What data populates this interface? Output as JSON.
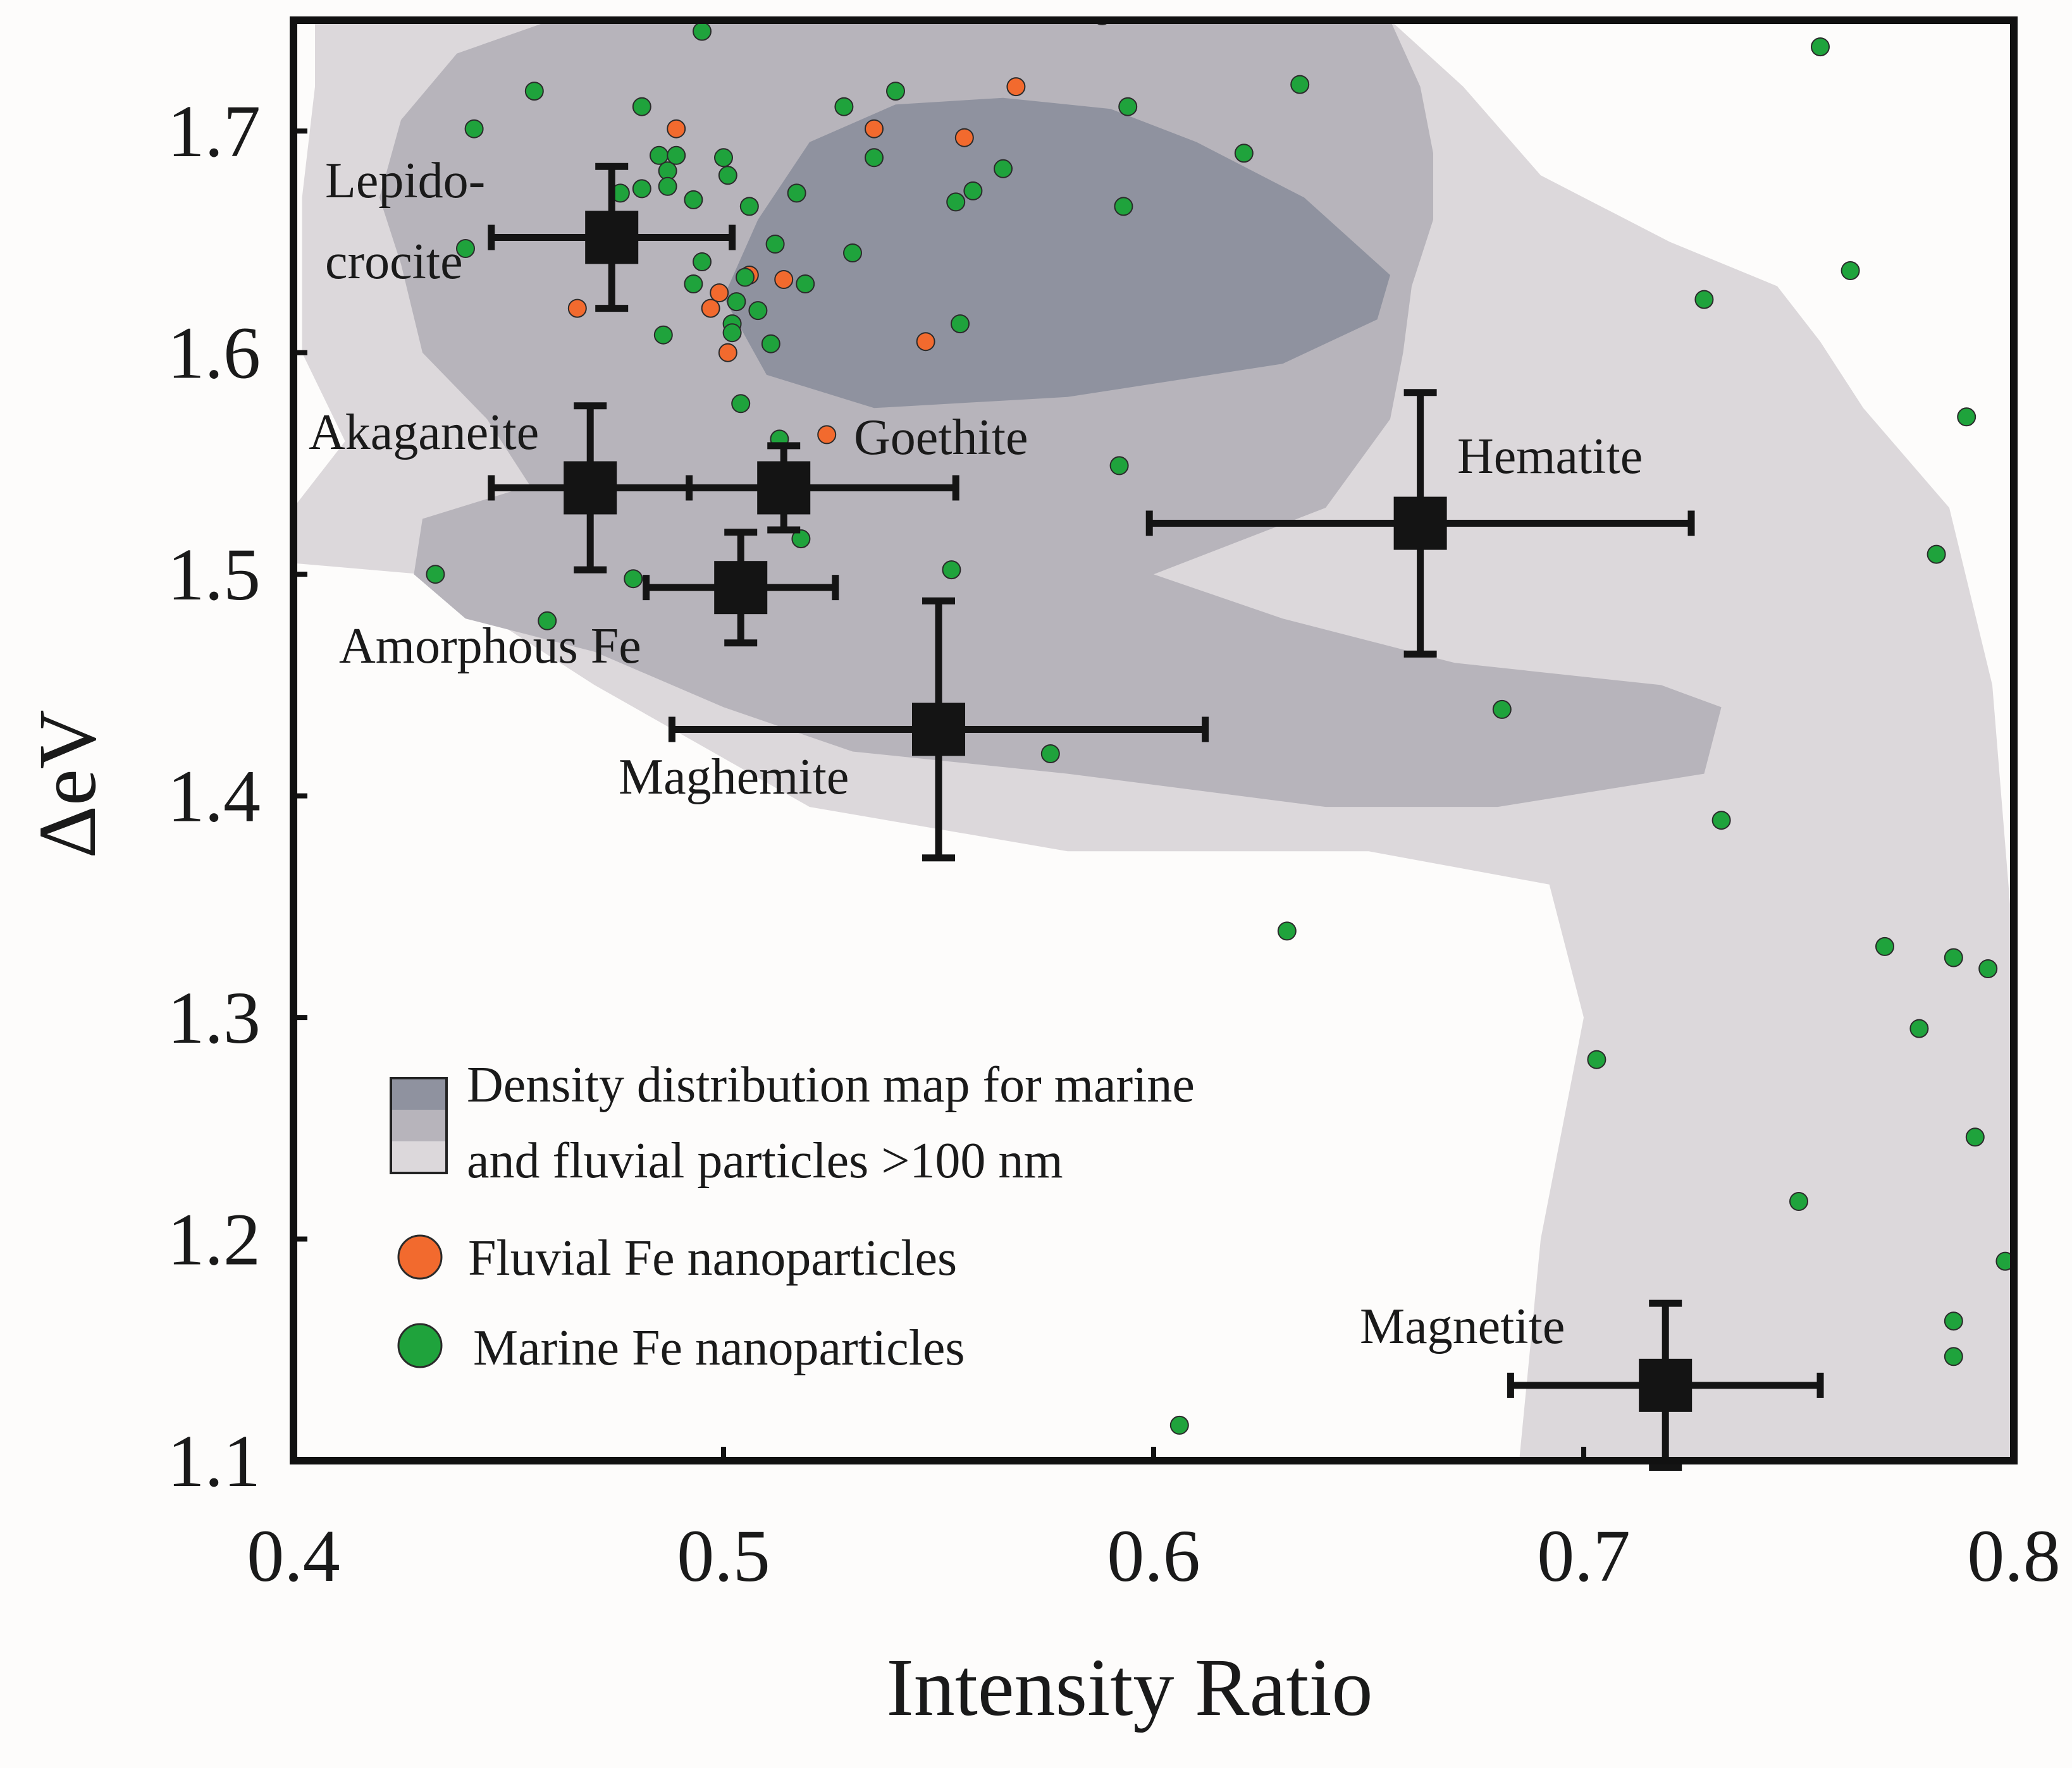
{
  "chart_data": {
    "type": "scatter",
    "xlabel": "Intensity Ratio",
    "ylabel": "ΔeV",
    "xlim": [
      0.4,
      0.8
    ],
    "ylim": [
      1.1,
      1.75
    ],
    "x_ticks": [
      "0.4",
      "0.5",
      "0.6",
      "0.7",
      "0.8"
    ],
    "y_ticks": [
      "1.1",
      "1.2",
      "1.3",
      "1.4",
      "1.5",
      "1.6",
      "1.7"
    ],
    "x_tick_values": [
      0.4,
      0.5,
      0.6,
      0.7,
      0.8
    ],
    "y_tick_values": [
      1.1,
      1.2,
      1.3,
      1.4,
      1.5,
      1.6,
      1.7
    ],
    "colors": {
      "fluvial": "#f26a2e",
      "marine": "#1fa33c",
      "density_low": "#dcd8db",
      "density_mid": "#b7b4bb",
      "density_high": "#8f929f",
      "reference": "#141414"
    },
    "density_regions": [
      {
        "level": "low",
        "polygon": [
          [
            0.405,
            1.75
          ],
          [
            0.655,
            1.75
          ],
          [
            0.672,
            1.72
          ],
          [
            0.69,
            1.68
          ],
          [
            0.72,
            1.65
          ],
          [
            0.745,
            1.63
          ],
          [
            0.755,
            1.605
          ],
          [
            0.765,
            1.575
          ],
          [
            0.785,
            1.53
          ],
          [
            0.795,
            1.45
          ],
          [
            0.8,
            1.33
          ],
          [
            0.8,
            1.1
          ],
          [
            0.685,
            1.1
          ],
          [
            0.69,
            1.2
          ],
          [
            0.7,
            1.3
          ],
          [
            0.692,
            1.36
          ],
          [
            0.65,
            1.375
          ],
          [
            0.58,
            1.375
          ],
          [
            0.52,
            1.395
          ],
          [
            0.47,
            1.45
          ],
          [
            0.43,
            1.5
          ],
          [
            0.4,
            1.505
          ],
          [
            0.4,
            1.53
          ],
          [
            0.412,
            1.56
          ],
          [
            0.402,
            1.6
          ],
          [
            0.402,
            1.67
          ],
          [
            0.405,
            1.72
          ]
        ]
      },
      {
        "level": "mid",
        "polygon": [
          [
            0.425,
            1.705
          ],
          [
            0.438,
            1.735
          ],
          [
            0.46,
            1.75
          ],
          [
            0.655,
            1.75
          ],
          [
            0.662,
            1.72
          ],
          [
            0.665,
            1.69
          ],
          [
            0.665,
            1.66
          ],
          [
            0.66,
            1.63
          ],
          [
            0.658,
            1.6
          ],
          [
            0.655,
            1.57
          ],
          [
            0.64,
            1.53
          ],
          [
            0.6,
            1.5
          ],
          [
            0.63,
            1.48
          ],
          [
            0.67,
            1.46
          ],
          [
            0.718,
            1.45
          ],
          [
            0.732,
            1.44
          ],
          [
            0.728,
            1.41
          ],
          [
            0.68,
            1.395
          ],
          [
            0.64,
            1.395
          ],
          [
            0.58,
            1.41
          ],
          [
            0.53,
            1.42
          ],
          [
            0.5,
            1.44
          ],
          [
            0.47,
            1.465
          ],
          [
            0.44,
            1.48
          ],
          [
            0.428,
            1.5
          ],
          [
            0.43,
            1.525
          ],
          [
            0.455,
            1.54
          ],
          [
            0.445,
            1.57
          ],
          [
            0.43,
            1.6
          ],
          [
            0.425,
            1.64
          ],
          [
            0.42,
            1.67
          ]
        ]
      },
      {
        "level": "high",
        "polygon": [
          [
            0.5,
            1.625
          ],
          [
            0.51,
            1.59
          ],
          [
            0.535,
            1.575
          ],
          [
            0.58,
            1.58
          ],
          [
            0.63,
            1.595
          ],
          [
            0.652,
            1.615
          ],
          [
            0.655,
            1.635
          ],
          [
            0.635,
            1.67
          ],
          [
            0.61,
            1.695
          ],
          [
            0.59,
            1.71
          ],
          [
            0.565,
            1.715
          ],
          [
            0.54,
            1.712
          ],
          [
            0.52,
            1.695
          ],
          [
            0.508,
            1.66
          ]
        ]
      }
    ],
    "series": [
      {
        "name": "Fluvial Fe nanoparticles",
        "points": [
          [
            0.489,
            1.701
          ],
          [
            0.535,
            1.701
          ],
          [
            0.556,
            1.697
          ],
          [
            0.568,
            1.72
          ],
          [
            0.466,
            1.62
          ],
          [
            0.497,
            1.62
          ],
          [
            0.501,
            1.6
          ],
          [
            0.499,
            1.627
          ],
          [
            0.506,
            1.635
          ],
          [
            0.514,
            1.633
          ],
          [
            0.547,
            1.605
          ],
          [
            0.524,
            1.563
          ]
        ]
      },
      {
        "name": "Marine Fe nanoparticles",
        "points": [
          [
            0.442,
            1.701
          ],
          [
            0.456,
            1.718
          ],
          [
            0.481,
            1.711
          ],
          [
            0.495,
            1.745
          ],
          [
            0.528,
            1.711
          ],
          [
            0.54,
            1.718
          ],
          [
            0.588,
            1.752
          ],
          [
            0.594,
            1.711
          ],
          [
            0.634,
            1.721
          ],
          [
            0.755,
            1.738
          ],
          [
            0.485,
            1.689
          ],
          [
            0.487,
            1.682
          ],
          [
            0.489,
            1.689
          ],
          [
            0.487,
            1.675
          ],
          [
            0.476,
            1.672
          ],
          [
            0.481,
            1.674
          ],
          [
            0.493,
            1.669
          ],
          [
            0.5,
            1.688
          ],
          [
            0.501,
            1.68
          ],
          [
            0.506,
            1.666
          ],
          [
            0.517,
            1.672
          ],
          [
            0.535,
            1.688
          ],
          [
            0.554,
            1.668
          ],
          [
            0.558,
            1.673
          ],
          [
            0.565,
            1.683
          ],
          [
            0.593,
            1.666
          ],
          [
            0.621,
            1.69
          ],
          [
            0.44,
            1.647
          ],
          [
            0.512,
            1.649
          ],
          [
            0.53,
            1.645
          ],
          [
            0.495,
            1.641
          ],
          [
            0.493,
            1.631
          ],
          [
            0.503,
            1.623
          ],
          [
            0.502,
            1.613
          ],
          [
            0.502,
            1.609
          ],
          [
            0.505,
            1.634
          ],
          [
            0.508,
            1.619
          ],
          [
            0.519,
            1.631
          ],
          [
            0.486,
            1.608
          ],
          [
            0.511,
            1.604
          ],
          [
            0.555,
            1.613
          ],
          [
            0.728,
            1.624
          ],
          [
            0.762,
            1.637
          ],
          [
            0.504,
            1.577
          ],
          [
            0.513,
            1.561
          ],
          [
            0.592,
            1.549
          ],
          [
            0.789,
            1.571
          ],
          [
            0.518,
            1.516
          ],
          [
            0.433,
            1.5
          ],
          [
            0.479,
            1.498
          ],
          [
            0.553,
            1.502
          ],
          [
            0.459,
            1.479
          ],
          [
            0.782,
            1.509
          ],
          [
            0.576,
            1.419
          ],
          [
            0.681,
            1.439
          ],
          [
            0.732,
            1.389
          ],
          [
            0.631,
            1.339
          ],
          [
            0.77,
            1.332
          ],
          [
            0.786,
            1.327
          ],
          [
            0.794,
            1.322
          ],
          [
            0.778,
            1.295
          ],
          [
            0.703,
            1.281
          ],
          [
            0.791,
            1.246
          ],
          [
            0.75,
            1.217
          ],
          [
            0.798,
            1.19
          ],
          [
            0.786,
            1.163
          ],
          [
            0.786,
            1.147
          ],
          [
            0.606,
            1.116
          ]
        ]
      }
    ],
    "references": [
      {
        "name": "Lepidocrocite",
        "label_lines": [
          "Lepido-",
          "crocite"
        ],
        "x": 0.474,
        "y": 1.652,
        "xerr": 0.028,
        "yerr": 0.032
      },
      {
        "name": "Akaganeite",
        "label_lines": [
          "Akaganeite"
        ],
        "x": 0.469,
        "y": 1.539,
        "xerr": 0.023,
        "yerr": 0.037
      },
      {
        "name": "Goethite",
        "label_lines": [
          "Goethite"
        ],
        "x": 0.514,
        "y": 1.539,
        "xerr": 0.04,
        "yerr": 0.019
      },
      {
        "name": "Amorphous Fe",
        "label_lines": [
          "Amorphous Fe"
        ],
        "x": 0.504,
        "y": 1.494,
        "xerr": 0.022,
        "yerr": 0.025
      },
      {
        "name": "Hematite",
        "label_lines": [
          "Hematite"
        ],
        "x": 0.662,
        "y": 1.523,
        "xerr": 0.063,
        "yerr": 0.059
      },
      {
        "name": "Maghemite",
        "label_lines": [
          "Maghemite"
        ],
        "x": 0.55,
        "y": 1.43,
        "xerr": 0.062,
        "yerr": 0.058
      },
      {
        "name": "Magnetite",
        "label_lines": [
          "Magnetite"
        ],
        "x": 0.719,
        "y": 1.134,
        "xerr": 0.036,
        "yerr": 0.037
      }
    ],
    "legend": {
      "position": "bottom-left",
      "entries": [
        {
          "key": "density",
          "lines": [
            "Density distribution map for marine",
            "and fluvial particles >100 nm"
          ]
        },
        {
          "key": "fluvial",
          "lines": [
            "Fluvial Fe nanoparticles"
          ]
        },
        {
          "key": "marine",
          "lines": [
            "Marine Fe nanoparticles"
          ]
        }
      ]
    }
  }
}
